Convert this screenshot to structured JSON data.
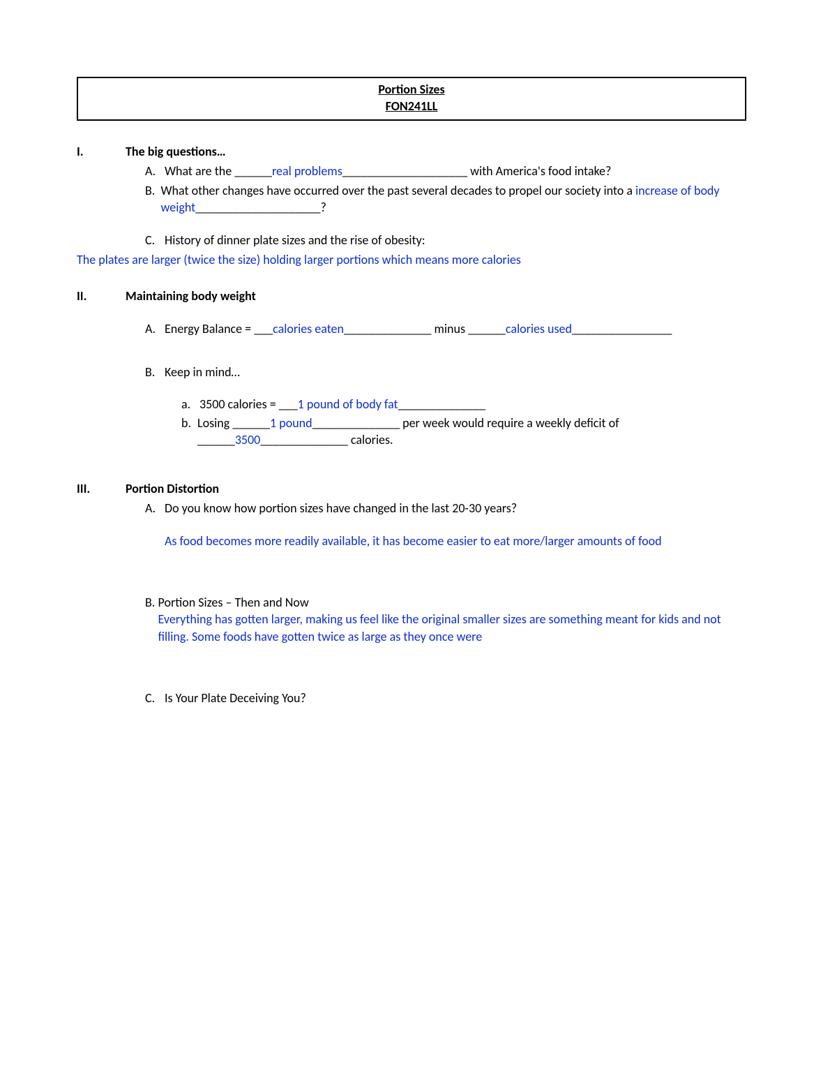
{
  "title_line1": "Portion Sizes",
  "title_line2": "FON241LL",
  "s1": {
    "roman": "I.",
    "title": "The big questions…",
    "A_label": "A.",
    "A_pre": "What are the ______",
    "A_fill": "real problems",
    "A_post": "____________________ with America's food intake?",
    "B_label": "B.",
    "B_pre": "What other changes have occurred over the past several decades to propel our society into a ",
    "B_fill": "increase of body weight",
    "B_post": "____________________?",
    "C_label": "C.",
    "C_text": "History of dinner plate sizes and the rise of obesity:",
    "C_answer": "The plates are larger (twice the size) holding larger portions which means more calories"
  },
  "s2": {
    "roman": "II.",
    "title": "Maintaining body weight",
    "A_label": "A.",
    "A_pre": "Energy Balance = ___",
    "A_fill1": "calories eaten",
    "A_mid": "______________ minus ______",
    "A_fill2": "calories used",
    "A_post": "________________",
    "B_label": "B.",
    "B_text": "Keep in mind…",
    "a_label": "a.",
    "a_pre": "3500 calories = ___",
    "a_fill": "1 pound of body fat",
    "a_post": "______________",
    "b_label": "b.",
    "b_pre": "Losing ______",
    "b_fill1": "1 pound",
    "b_mid": "______________ per week  would require a weekly deficit of ______",
    "b_fill2": "3500",
    "b_post": "______________ calories."
  },
  "s3": {
    "roman": "III.",
    "title": "Portion Distortion",
    "A_label": "A.",
    "A_text": "Do you know how portion sizes have changed in the last 20-30 years?",
    "A_answer": "As food becomes more readily available, it has become easier to eat more/larger amounts of food",
    "B_label": "B.",
    "B_text": "Portion Sizes – Then and Now",
    "B_answer": "Everything has gotten larger, making us feel like the original smaller sizes are something meant for kids and not filling. Some foods have gotten twice as large as they once were",
    "C_label": "C.",
    "C_text": "Is Your Plate Deceiving You?"
  }
}
